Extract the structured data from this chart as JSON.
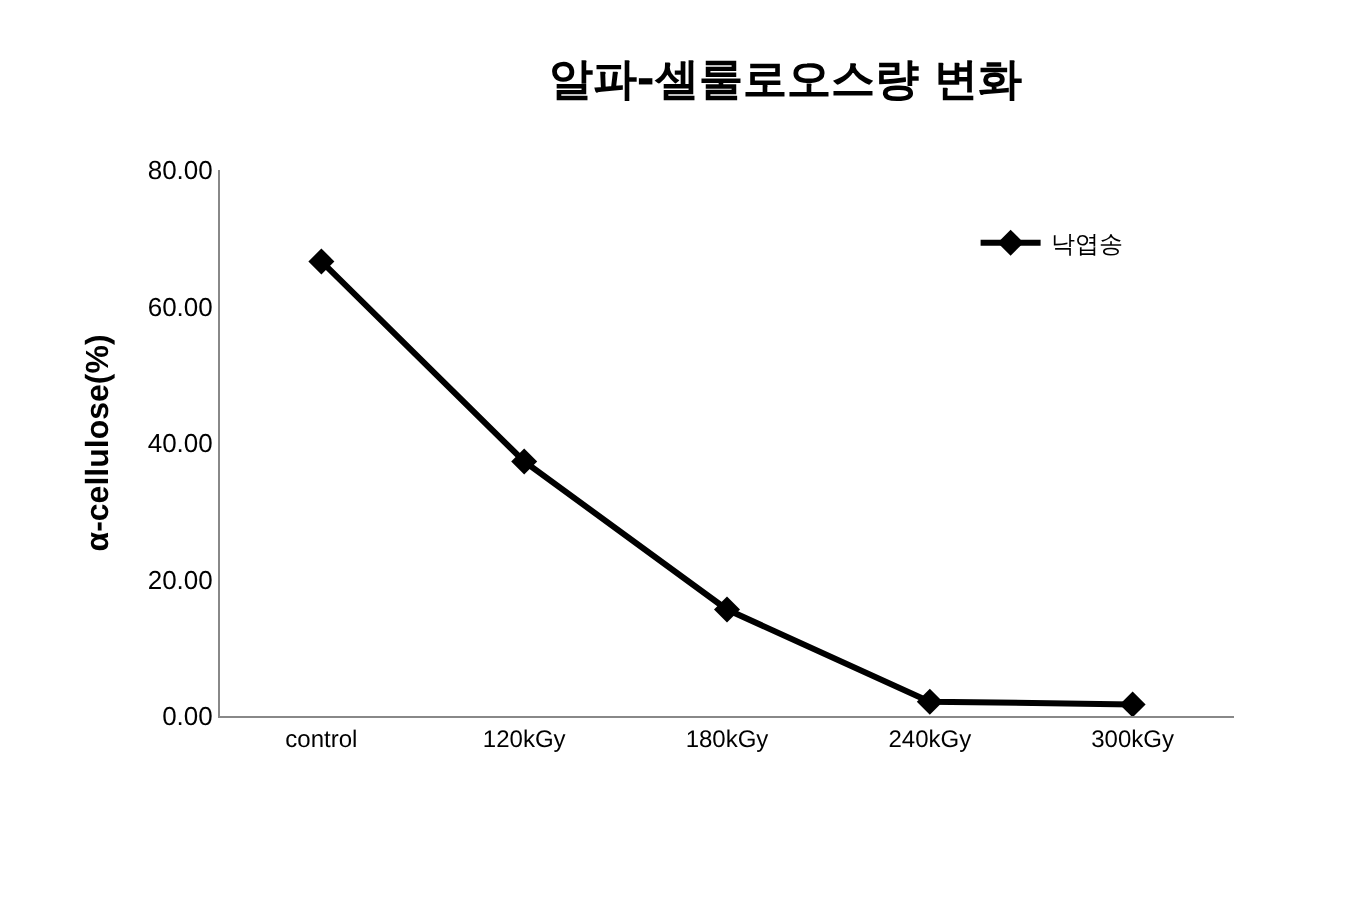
{
  "chart_data": {
    "type": "line",
    "title": "알파-셀룰로오스량 변화",
    "ylabel": "α-cellulose(%)",
    "categories": [
      "control",
      "120kGy",
      "180kGy",
      "240kGy",
      "300kGy"
    ],
    "series": [
      {
        "name": "낙엽송",
        "color": "#000000",
        "values": [
          66.6,
          37.3,
          15.6,
          2.1,
          1.7
        ]
      }
    ],
    "ylim": [
      0,
      80
    ],
    "yticks": [
      {
        "value": 0,
        "label": "0.00"
      },
      {
        "value": 20,
        "label": "20.00"
      },
      {
        "value": 40,
        "label": "40.00"
      },
      {
        "value": 60,
        "label": "60.00"
      },
      {
        "value": 80,
        "label": "80.00"
      }
    ],
    "legend": "top right",
    "marker": "diamond",
    "line_style": "solid"
  }
}
